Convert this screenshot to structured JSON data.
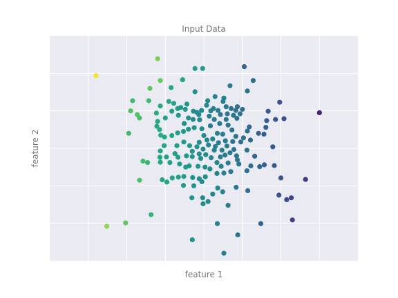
{
  "chart_data": {
    "type": "scatter",
    "title": "Input Data",
    "xlabel": "feature 1",
    "ylabel": "feature 2",
    "xlim": [
      -4.0,
      4.0
    ],
    "ylim": [
      -3.0,
      3.0
    ],
    "grid": true,
    "xticks_shown": false,
    "yticks_shown": false,
    "colormap": "viridis",
    "background_color": "#eaeaf2",
    "grid_color": "#ffffff",
    "points": [
      [
        -2.8,
        1.94,
        0.99
      ],
      [
        -1.2,
        2.39,
        0.88
      ],
      [
        -1.4,
        1.6,
        0.84
      ],
      [
        -1.13,
        1.81,
        0.85
      ],
      [
        -0.55,
        1.83,
        0.72
      ],
      [
        -0.23,
        2.13,
        0.7
      ],
      [
        -0.03,
        2.13,
        0.68
      ],
      [
        1.05,
        2.18,
        0.42
      ],
      [
        1.28,
        1.81,
        0.44
      ],
      [
        0.68,
        1.67,
        0.52
      ],
      [
        1.13,
        1.53,
        0.46
      ],
      [
        0.52,
        1.34,
        0.55
      ],
      [
        -0.85,
        1.62,
        0.74
      ],
      [
        -0.23,
        1.51,
        0.62
      ],
      [
        -1.85,
        1.27,
        0.8
      ],
      [
        -1.43,
        1.27,
        0.79
      ],
      [
        -1.13,
        1.13,
        0.76
      ],
      [
        -0.91,
        1.25,
        0.74
      ],
      [
        -0.78,
        1.2,
        0.72
      ],
      [
        -0.44,
        1.18,
        0.66
      ],
      [
        -0.6,
        1.09,
        0.67
      ],
      [
        -1.9,
        1.0,
        0.83
      ],
      [
        -1.73,
        0.9,
        0.83
      ],
      [
        -1.67,
        0.81,
        0.81
      ],
      [
        -1.23,
        0.94,
        0.76
      ],
      [
        -1.2,
        0.72,
        0.76
      ],
      [
        -1.0,
        0.81,
        0.72
      ],
      [
        -1.22,
        0.59,
        0.75
      ],
      [
        -0.83,
        0.99,
        0.7
      ],
      [
        -0.68,
        1.06,
        0.69
      ],
      [
        -0.48,
        1.04,
        0.66
      ],
      [
        -0.66,
        0.88,
        0.67
      ],
      [
        -0.27,
        0.99,
        0.62
      ],
      [
        -0.18,
        0.96,
        0.61
      ],
      [
        -0.06,
        1.01,
        0.59
      ],
      [
        -0.13,
        0.9,
        0.59
      ],
      [
        -0.4,
        0.81,
        0.63
      ],
      [
        -0.51,
        0.66,
        0.63
      ],
      [
        -0.28,
        0.77,
        0.61
      ],
      [
        -0.11,
        0.76,
        0.58
      ],
      [
        0.1,
        1.27,
        0.6
      ],
      [
        0.07,
        1.15,
        0.58
      ],
      [
        0.29,
        1.38,
        0.56
      ],
      [
        0.5,
        1.25,
        0.54
      ],
      [
        0.25,
        1.06,
        0.55
      ],
      [
        0.18,
        1.0,
        0.55
      ],
      [
        0.37,
        1.01,
        0.53
      ],
      [
        0.58,
        1.11,
        0.51
      ],
      [
        0.71,
        1.06,
        0.49
      ],
      [
        0.83,
        1.01,
        0.47
      ],
      [
        0.87,
        1.11,
        0.46
      ],
      [
        1.0,
        1.04,
        0.45
      ],
      [
        0.14,
        0.86,
        0.54
      ],
      [
        0.27,
        0.77,
        0.53
      ],
      [
        0.43,
        0.9,
        0.52
      ],
      [
        0.61,
        0.92,
        0.5
      ],
      [
        0.77,
        0.88,
        0.48
      ],
      [
        0.94,
        0.92,
        0.46
      ],
      [
        0.86,
        0.8,
        0.47
      ],
      [
        0.58,
        0.77,
        0.5
      ],
      [
        0.17,
        0.6,
        0.53
      ],
      [
        0.41,
        0.66,
        0.52
      ],
      [
        0.63,
        0.62,
        0.49
      ],
      [
        0.73,
        0.49,
        0.48
      ],
      [
        1.97,
        1.23,
        0.32
      ],
      [
        1.67,
        0.99,
        0.36
      ],
      [
        2.08,
        0.79,
        0.31
      ],
      [
        1.86,
        0.77,
        0.34
      ],
      [
        1.63,
        0.74,
        0.37
      ],
      [
        1.61,
        0.56,
        0.37
      ],
      [
        1.42,
        0.4,
        0.38
      ],
      [
        1.56,
        0.38,
        0.37
      ],
      [
        1.13,
        0.46,
        0.44
      ],
      [
        1.18,
        0.57,
        0.43
      ],
      [
        3.0,
        0.95,
        0.12
      ],
      [
        -1.95,
        0.4,
        0.8
      ],
      [
        -1.15,
        0.5,
        0.76
      ],
      [
        -1.12,
        0.35,
        0.76
      ],
      [
        -1.02,
        0.3,
        0.74
      ],
      [
        -0.83,
        0.34,
        0.73
      ],
      [
        -0.68,
        0.41,
        0.7
      ],
      [
        -0.53,
        0.45,
        0.68
      ],
      [
        -0.4,
        0.51,
        0.66
      ],
      [
        -0.25,
        0.55,
        0.64
      ],
      [
        -0.05,
        0.52,
        0.62
      ],
      [
        0.0,
        0.34,
        0.59
      ],
      [
        0.08,
        0.22,
        0.57
      ],
      [
        0.23,
        0.25,
        0.56
      ],
      [
        0.35,
        0.4,
        0.55
      ],
      [
        0.49,
        0.38,
        0.53
      ],
      [
        0.56,
        0.2,
        0.52
      ],
      [
        0.38,
        0.15,
        0.53
      ],
      [
        0.75,
        0.18,
        0.49
      ],
      [
        0.83,
        0.32,
        0.48
      ],
      [
        0.96,
        0.17,
        0.46
      ],
      [
        1.03,
        0.28,
        0.46
      ],
      [
        1.21,
        0.22,
        0.43
      ],
      [
        -1.03,
        0.07,
        0.72
      ],
      [
        -0.7,
        0.07,
        0.69
      ],
      [
        -0.52,
        0.17,
        0.68
      ],
      [
        -0.37,
        0.07,
        0.66
      ],
      [
        -0.3,
        -0.08,
        0.65
      ],
      [
        -0.18,
        0.04,
        0.63
      ],
      [
        -0.12,
        0.16,
        0.61
      ],
      [
        -0.02,
        -0.02,
        0.6
      ],
      [
        0.12,
        0.09,
        0.58
      ],
      [
        0.27,
        -0.05,
        0.56
      ],
      [
        0.3,
        0.05,
        0.56
      ],
      [
        0.47,
        -0.05,
        0.55
      ],
      [
        0.6,
        0.06,
        0.52
      ],
      [
        0.55,
        -0.18,
        0.52
      ],
      [
        0.43,
        -0.23,
        0.53
      ],
      [
        0.68,
        -0.12,
        0.5
      ],
      [
        0.78,
        -0.03,
        0.49
      ],
      [
        0.85,
        -0.2,
        0.48
      ],
      [
        1.12,
        -0.05,
        0.45
      ],
      [
        -1.13,
        -0.07,
        0.74
      ],
      [
        -1.14,
        -0.24,
        0.74
      ],
      [
        -0.97,
        -0.23,
        0.72
      ],
      [
        -0.75,
        -0.14,
        0.7
      ],
      [
        -0.67,
        -0.24,
        0.69
      ],
      [
        -0.45,
        -0.2,
        0.67
      ],
      [
        -0.3,
        -0.22,
        0.65
      ],
      [
        -0.12,
        -0.15,
        0.62
      ],
      [
        -0.08,
        -0.27,
        0.62
      ],
      [
        0.05,
        -0.17,
        0.6
      ],
      [
        0.19,
        -0.25,
        0.58
      ],
      [
        0.34,
        -0.38,
        0.56
      ],
      [
        -1.58,
        -0.34,
        0.8
      ],
      [
        -1.46,
        -0.38,
        0.79
      ],
      [
        -1.13,
        -0.37,
        0.75
      ],
      [
        -0.88,
        -0.38,
        0.73
      ],
      [
        -0.63,
        -0.42,
        0.7
      ],
      [
        -0.47,
        -0.5,
        0.68
      ],
      [
        -0.38,
        -0.47,
        0.66
      ],
      [
        -0.15,
        -0.48,
        0.64
      ],
      [
        0.03,
        -0.5,
        0.61
      ],
      [
        0.16,
        -0.55,
        0.59
      ],
      [
        0.45,
        -0.48,
        0.56
      ],
      [
        0.63,
        -0.39,
        0.53
      ],
      [
        0.87,
        -0.31,
        0.5
      ],
      [
        0.91,
        -0.42,
        0.49
      ],
      [
        1.32,
        -0.21,
        0.43
      ],
      [
        1.22,
        -0.47,
        0.44
      ],
      [
        1.45,
        -0.49,
        0.41
      ],
      [
        1.57,
        -0.44,
        0.39
      ],
      [
        1.83,
        -0.46,
        0.36
      ],
      [
        1.79,
        0.04,
        0.35
      ],
      [
        1.12,
        -0.6,
        0.45
      ],
      [
        0.7,
        -0.62,
        0.51
      ],
      [
        0.52,
        -0.66,
        0.53
      ],
      [
        0.34,
        -0.67,
        0.55
      ],
      [
        0.04,
        -0.76,
        0.6
      ],
      [
        -0.12,
        -0.81,
        0.62
      ],
      [
        -0.29,
        -0.78,
        0.64
      ],
      [
        -0.52,
        -0.75,
        0.68
      ],
      [
        -0.66,
        -0.77,
        0.7
      ],
      [
        -0.82,
        -0.79,
        0.72
      ],
      [
        -0.96,
        -0.9,
        0.74
      ],
      [
        -1.08,
        -0.84,
        0.75
      ],
      [
        -1.67,
        -0.85,
        0.82
      ],
      [
        -0.53,
        -0.99,
        0.69
      ],
      [
        -0.26,
        -1.0,
        0.65
      ],
      [
        -0.05,
        -0.89,
        0.62
      ],
      [
        0.36,
        -1.06,
        0.56
      ],
      [
        0.49,
        -1.16,
        0.54
      ],
      [
        0.84,
        -1.04,
        0.5
      ],
      [
        1.14,
        -1.13,
        0.45
      ],
      [
        2.0,
        -0.79,
        0.31
      ],
      [
        1.95,
        -1.25,
        0.32
      ],
      [
        2.15,
        -1.37,
        0.28
      ],
      [
        2.27,
        -1.32,
        0.26
      ],
      [
        0.23,
        -1.22,
        0.56
      ],
      [
        -0.31,
        -1.32,
        0.65
      ],
      [
        -0.03,
        -1.32,
        0.61
      ],
      [
        -0.02,
        -1.48,
        0.61
      ],
      [
        0.11,
        -1.42,
        0.59
      ],
      [
        0.63,
        -1.52,
        0.51
      ],
      [
        2.3,
        -1.91,
        0.24
      ],
      [
        1.48,
        -2.01,
        0.4
      ],
      [
        0.35,
        -2.01,
        0.56
      ],
      [
        -1.37,
        -1.77,
        0.78
      ],
      [
        -2.03,
        -1.99,
        0.84
      ],
      [
        -2.52,
        -2.08,
        0.9
      ],
      [
        -0.3,
        -2.44,
        0.65
      ],
      [
        0.88,
        -2.31,
        0.49
      ],
      [
        0.52,
        -2.8,
        0.54
      ],
      [
        2.64,
        -0.83,
        0.21
      ]
    ]
  }
}
